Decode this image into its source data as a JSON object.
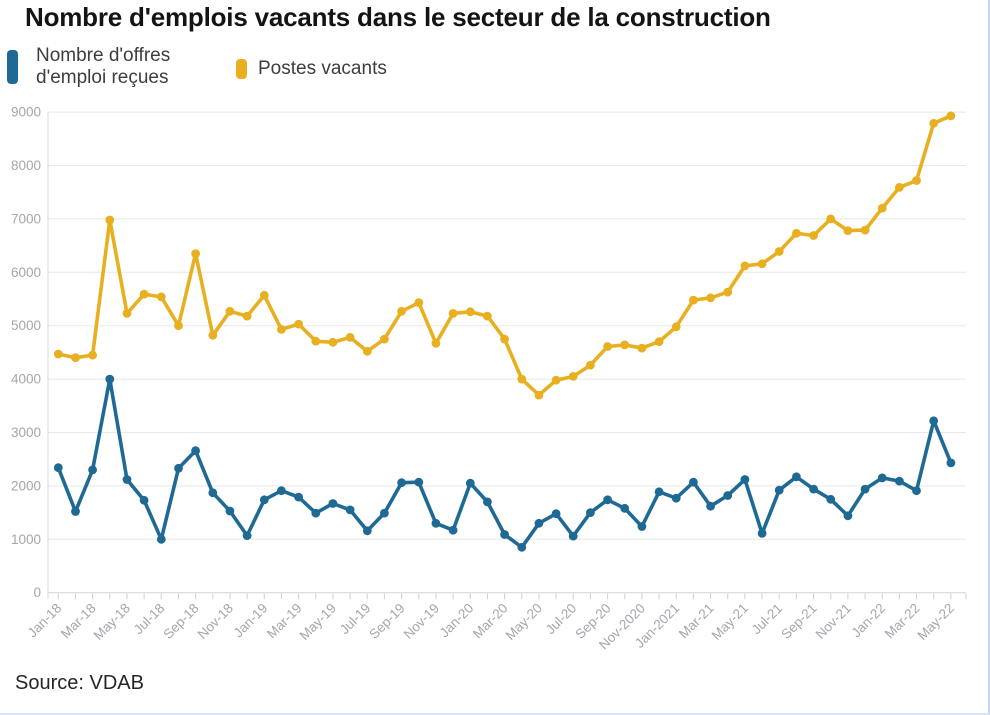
{
  "page": {
    "title": "Nombre d'emplois vacants dans le secteur de la construction",
    "source": "Source: VDAB"
  },
  "legend": {
    "items": [
      {
        "label": "Nombre d'offres d'emploi reçues",
        "lines": [
          "Nombre d'offres",
          "d'emploi reçues"
        ],
        "color": "#1f6a94"
      },
      {
        "label": "Postes vacants",
        "lines": [
          "Postes vacants"
        ],
        "color": "#e8af20"
      }
    ]
  },
  "chart_data": {
    "type": "line",
    "title": "Nombre d'emplois vacants dans le secteur de la construction",
    "xlabel": "",
    "ylabel": "",
    "ylim": [
      0,
      9000
    ],
    "y_ticks": [
      0,
      1000,
      2000,
      3000,
      4000,
      5000,
      6000,
      7000,
      8000,
      9000
    ],
    "grid": true,
    "legend_position": "top-left",
    "x": [
      "Jan-18",
      "Feb-18",
      "Mar-18",
      "Apr-18",
      "May-18",
      "Jun-18",
      "Jul-18",
      "Aug-18",
      "Sep-18",
      "Oct-18",
      "Nov-18",
      "Dec-18",
      "Jan-19",
      "Feb-19",
      "Mar-19",
      "Apr-19",
      "May-19",
      "Jun-19",
      "Jul-19",
      "Aug-19",
      "Sep-19",
      "Oct-19",
      "Nov-19",
      "Dec-19",
      "Jan-20",
      "Feb-20",
      "Mar-20",
      "Apr-20",
      "May-20",
      "Jun-20",
      "Jul-20",
      "Aug-20",
      "Sep-20",
      "Oct-20",
      "Nov-20",
      "Dec-20",
      "Jan-21",
      "Feb-21",
      "Mar-21",
      "Apr-21",
      "May-21",
      "Jun-21",
      "Jul-21",
      "Aug-21",
      "Sep-21",
      "Oct-21",
      "Nov-21",
      "Dec-21",
      "Jan-22",
      "Feb-22",
      "Mar-22",
      "Apr-22",
      "May-22"
    ],
    "x_tick_every": 2,
    "x_tick_labels": [
      "Jan-18",
      "Mar-18",
      "May-18",
      "Jul-18",
      "Sep-18",
      "Nov-18",
      "Jan-19",
      "Mar-19",
      "May-19",
      "Jul-19",
      "Sep-19",
      "Nov-19",
      "Jan-20",
      "Mar-20",
      "May-20",
      "Jul-20",
      "Sep-20",
      "Nov-2020",
      "Jan-2021",
      "Mar-21",
      "May-21",
      "Jul-21",
      "Sep-21",
      "Nov-21",
      "Jan-22",
      "Mar-22",
      "May-22"
    ],
    "series": [
      {
        "name": "Nombre d'offres d'emploi reçues",
        "color": "#1f6a94",
        "values": [
          2340,
          1520,
          2300,
          4000,
          2120,
          1730,
          1000,
          2330,
          2660,
          1870,
          1530,
          1070,
          1740,
          1910,
          1790,
          1490,
          1670,
          1550,
          1160,
          1490,
          2060,
          2070,
          1300,
          1170,
          2050,
          1700,
          1090,
          850,
          1300,
          1480,
          1060,
          1500,
          1740,
          1580,
          1240,
          1890,
          1770,
          2070,
          1620,
          1820,
          2120,
          1110,
          1920,
          2170,
          1940,
          1750,
          1440,
          1940,
          2150,
          2090,
          1910,
          3220,
          2430
        ]
      },
      {
        "name": "Postes vacants",
        "color": "#e8af20",
        "values": [
          4470,
          4400,
          4450,
          6980,
          5230,
          5590,
          5540,
          5000,
          6350,
          4820,
          5270,
          5180,
          5570,
          4930,
          5030,
          4710,
          4690,
          4780,
          4520,
          4750,
          5270,
          5430,
          4670,
          5230,
          5260,
          5180,
          4750,
          4000,
          3700,
          3980,
          4050,
          4260,
          4610,
          4640,
          4580,
          4700,
          4980,
          5480,
          5520,
          5630,
          6120,
          6160,
          6390,
          6730,
          6690,
          7000,
          6780,
          6790,
          7200,
          7590,
          7720,
          8790,
          8930
        ]
      }
    ],
    "colors": {
      "received_offers": "#1f6a94",
      "vacancies": "#e8af20",
      "grid": "#e8e8e8",
      "axis": "#d4d4d4",
      "tick_label": "#a2a7ad"
    }
  }
}
